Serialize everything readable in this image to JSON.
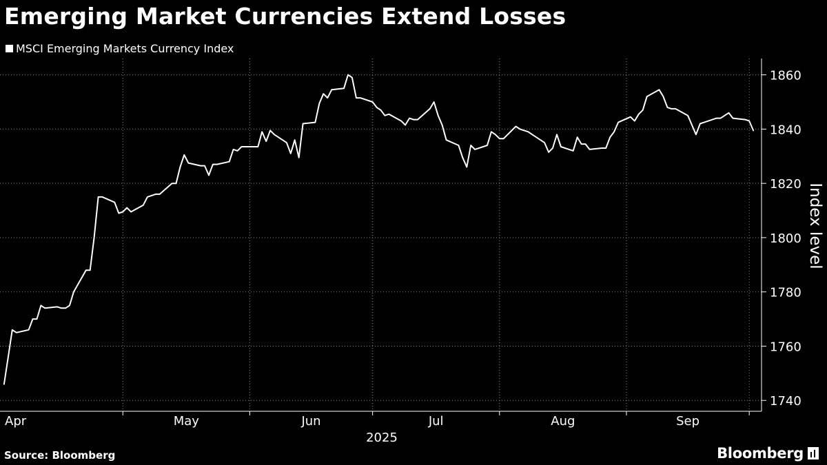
{
  "header": {
    "title": "Emerging Market Currencies Extend Losses"
  },
  "footer": {
    "source": "Source: Bloomberg",
    "brand": "Bloomberg"
  },
  "colors": {
    "background": "#000000",
    "line": "#ffffff",
    "grid": "#8c8c8c",
    "text": "#ffffff"
  },
  "chart_data": {
    "type": "line",
    "title": "Emerging Market Currencies Extend Losses",
    "xlabel": "",
    "ylabel": "Index level",
    "year_label": "2025",
    "x_tick_labels": [
      "Apr",
      "May",
      "Jun",
      "Jul",
      "Aug",
      "Sep"
    ],
    "y_ticks": [
      1740,
      1760,
      1780,
      1800,
      1820,
      1840,
      1860
    ],
    "ylim": [
      1736,
      1866
    ],
    "xlim": [
      "2025-04-01",
      "2025-09-30"
    ],
    "grid": true,
    "legend_position": "top-left",
    "series": [
      {
        "name": "MSCI Emerging Markets Currency Index",
        "points": [
          [
            "2025-04-01",
            1746
          ],
          [
            "2025-04-02",
            1756
          ],
          [
            "2025-04-03",
            1766
          ],
          [
            "2025-04-04",
            1765
          ],
          [
            "2025-04-07",
            1766
          ],
          [
            "2025-04-08",
            1770
          ],
          [
            "2025-04-09",
            1770
          ],
          [
            "2025-04-10",
            1775
          ],
          [
            "2025-04-11",
            1774
          ],
          [
            "2025-04-14",
            1774.5
          ],
          [
            "2025-04-15",
            1774
          ],
          [
            "2025-04-16",
            1774
          ],
          [
            "2025-04-17",
            1775
          ],
          [
            "2025-04-18",
            1780
          ],
          [
            "2025-04-21",
            1788
          ],
          [
            "2025-04-22",
            1788
          ],
          [
            "2025-04-23",
            1800
          ],
          [
            "2025-04-24",
            1815
          ],
          [
            "2025-04-25",
            1815
          ],
          [
            "2025-04-28",
            1813
          ],
          [
            "2025-04-29",
            1809
          ],
          [
            "2025-04-30",
            1809.5
          ],
          [
            "2025-05-01",
            1811
          ],
          [
            "2025-05-02",
            1809.5
          ],
          [
            "2025-05-05",
            1812
          ],
          [
            "2025-05-06",
            1815
          ],
          [
            "2025-05-07",
            1815.5
          ],
          [
            "2025-05-08",
            1816
          ],
          [
            "2025-05-09",
            1816
          ],
          [
            "2025-05-12",
            1820
          ],
          [
            "2025-05-13",
            1820
          ],
          [
            "2025-05-14",
            1826
          ],
          [
            "2025-05-15",
            1830.5
          ],
          [
            "2025-05-16",
            1827.5
          ],
          [
            "2025-05-19",
            1826.5
          ],
          [
            "2025-05-20",
            1826.5
          ],
          [
            "2025-05-21",
            1823
          ],
          [
            "2025-05-22",
            1827
          ],
          [
            "2025-05-23",
            1827
          ],
          [
            "2025-05-26",
            1828
          ],
          [
            "2025-05-27",
            1832.5
          ],
          [
            "2025-05-28",
            1832
          ],
          [
            "2025-05-29",
            1833.5
          ],
          [
            "2025-05-30",
            1833.5
          ],
          [
            "2025-06-02",
            1833.5
          ],
          [
            "2025-06-03",
            1839
          ],
          [
            "2025-06-04",
            1835.5
          ],
          [
            "2025-06-05",
            1839.5
          ],
          [
            "2025-06-06",
            1838
          ],
          [
            "2025-06-09",
            1835
          ],
          [
            "2025-06-10",
            1831
          ],
          [
            "2025-06-11",
            1836
          ],
          [
            "2025-06-12",
            1829.5
          ],
          [
            "2025-06-13",
            1842
          ],
          [
            "2025-06-16",
            1842.5
          ],
          [
            "2025-06-17",
            1849.5
          ],
          [
            "2025-06-18",
            1853
          ],
          [
            "2025-06-19",
            1851.5
          ],
          [
            "2025-06-20",
            1854.5
          ],
          [
            "2025-06-23",
            1855
          ],
          [
            "2025-06-24",
            1860
          ],
          [
            "2025-06-25",
            1859
          ],
          [
            "2025-06-26",
            1851.5
          ],
          [
            "2025-06-27",
            1851.5
          ],
          [
            "2025-06-30",
            1850
          ],
          [
            "2025-07-01",
            1848
          ],
          [
            "2025-07-02",
            1847
          ],
          [
            "2025-07-03",
            1845
          ],
          [
            "2025-07-04",
            1845.5
          ],
          [
            "2025-07-07",
            1843
          ],
          [
            "2025-07-08",
            1841.5
          ],
          [
            "2025-07-09",
            1844
          ],
          [
            "2025-07-10",
            1843.5
          ],
          [
            "2025-07-11",
            1843.5
          ],
          [
            "2025-07-14",
            1847.5
          ],
          [
            "2025-07-15",
            1850
          ],
          [
            "2025-07-16",
            1845
          ],
          [
            "2025-07-17",
            1841.5
          ],
          [
            "2025-07-18",
            1836
          ],
          [
            "2025-07-21",
            1834
          ],
          [
            "2025-07-22",
            1829.5
          ],
          [
            "2025-07-23",
            1826
          ],
          [
            "2025-07-24",
            1834
          ],
          [
            "2025-07-25",
            1832.5
          ],
          [
            "2025-07-28",
            1834
          ],
          [
            "2025-07-29",
            1839
          ],
          [
            "2025-07-30",
            1838
          ],
          [
            "2025-07-31",
            1836.5
          ],
          [
            "2025-08-01",
            1836.5
          ],
          [
            "2025-08-04",
            1841
          ],
          [
            "2025-08-05",
            1840
          ],
          [
            "2025-08-06",
            1839.5
          ],
          [
            "2025-08-07",
            1839
          ],
          [
            "2025-08-08",
            1838
          ],
          [
            "2025-08-11",
            1835
          ],
          [
            "2025-08-12",
            1831.5
          ],
          [
            "2025-08-13",
            1833
          ],
          [
            "2025-08-14",
            1838
          ],
          [
            "2025-08-15",
            1833.5
          ],
          [
            "2025-08-18",
            1832
          ],
          [
            "2025-08-19",
            1837
          ],
          [
            "2025-08-20",
            1834.5
          ],
          [
            "2025-08-21",
            1834.5
          ],
          [
            "2025-08-22",
            1832.5
          ],
          [
            "2025-08-25",
            1833
          ],
          [
            "2025-08-26",
            1833
          ],
          [
            "2025-08-27",
            1837
          ],
          [
            "2025-08-28",
            1839
          ],
          [
            "2025-08-29",
            1842.5
          ],
          [
            "2025-09-01",
            1844.5
          ],
          [
            "2025-09-02",
            1843
          ],
          [
            "2025-09-03",
            1845.5
          ],
          [
            "2025-09-04",
            1847
          ],
          [
            "2025-09-05",
            1852
          ],
          [
            "2025-09-08",
            1854.5
          ],
          [
            "2025-09-09",
            1852
          ],
          [
            "2025-09-10",
            1848
          ],
          [
            "2025-09-11",
            1847.5
          ],
          [
            "2025-09-12",
            1847.5
          ],
          [
            "2025-09-15",
            1845
          ],
          [
            "2025-09-16",
            1841.5
          ],
          [
            "2025-09-17",
            1838
          ],
          [
            "2025-09-18",
            1842
          ],
          [
            "2025-09-19",
            1842.5
          ],
          [
            "2025-09-22",
            1844
          ],
          [
            "2025-09-23",
            1844
          ],
          [
            "2025-09-24",
            1845
          ],
          [
            "2025-09-25",
            1846
          ],
          [
            "2025-09-26",
            1844
          ],
          [
            "2025-09-29",
            1843.5
          ],
          [
            "2025-09-30",
            1843
          ],
          [
            "2025-10-01",
            1839.5
          ]
        ]
      }
    ]
  }
}
